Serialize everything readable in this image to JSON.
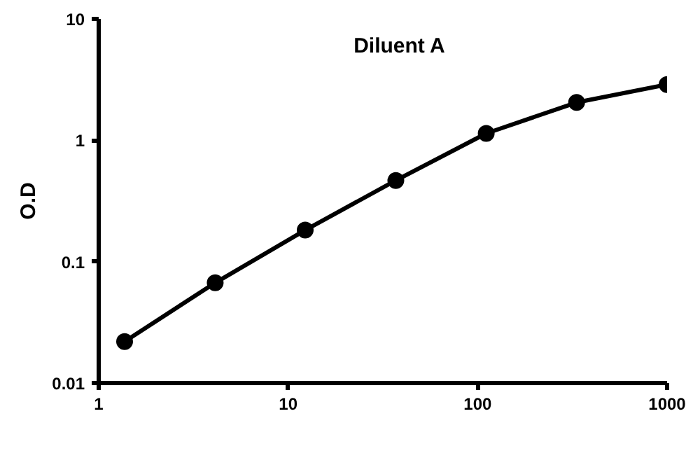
{
  "chart_data": {
    "type": "line",
    "title": "Diluent A",
    "ylabel": "O.D",
    "x": [
      1.37,
      4.12,
      12.3,
      37,
      111,
      333,
      1000
    ],
    "series": [
      {
        "color": "#000000",
        "values": [
          0.022,
          0.067,
          0.182,
          0.467,
          1.14,
          2.05,
          2.88
        ]
      }
    ],
    "log": "xy",
    "xlim": [
      1,
      1000
    ],
    "xticks": [
      1,
      10,
      100,
      1000
    ],
    "ylim": [
      0.01,
      10
    ],
    "yticks": [
      0.01,
      0.1,
      1,
      10
    ],
    "grid": false,
    "marker": "circle",
    "line_style": "solid"
  }
}
